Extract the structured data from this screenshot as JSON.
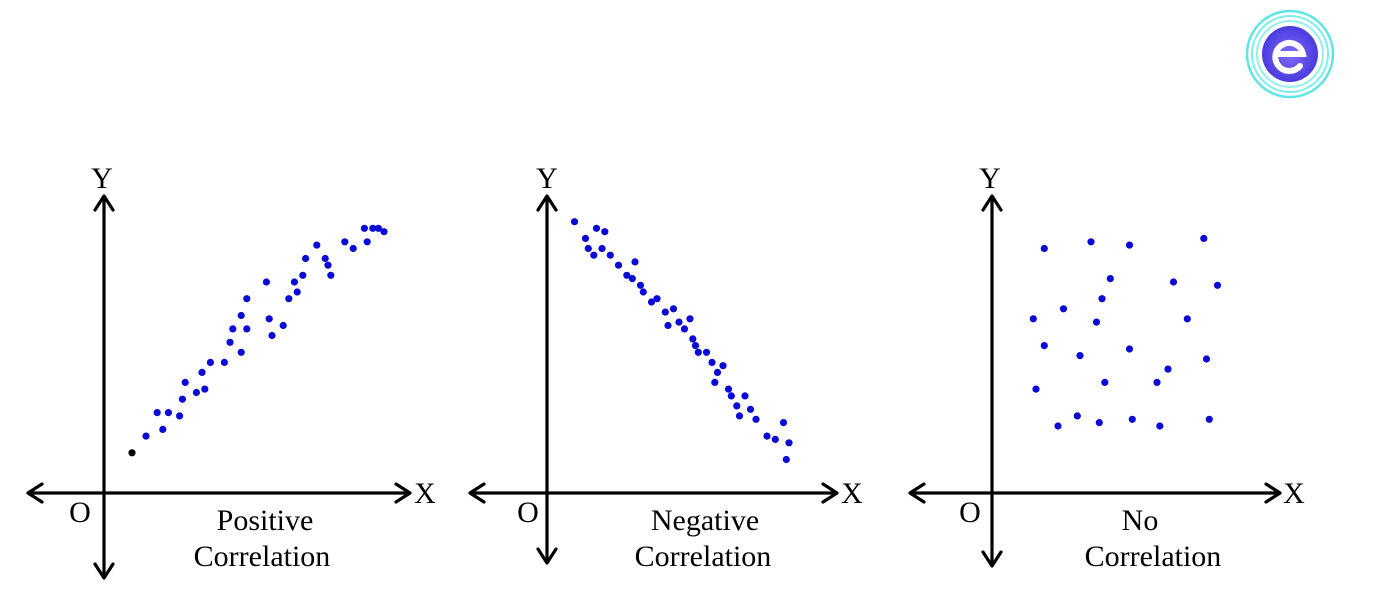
{
  "colors": {
    "point": "#0a0ad6",
    "axis": "#000000",
    "logo_ring": "#55e0e6",
    "logo_fill": "#6a4df0"
  },
  "logo": {
    "icon": "e-logo-icon"
  },
  "chart_data": [
    {
      "type": "scatter",
      "title": "",
      "caption_line1": "Positive",
      "caption_line2": "Correlation",
      "xlabel": "X",
      "ylabel": "Y",
      "origin_label": "O",
      "xlim": [
        -2.4,
        10.2
      ],
      "ylim": [
        -2.6,
        8.8
      ],
      "points": [
        [
          1.0,
          1.2
        ],
        [
          1.5,
          1.7
        ],
        [
          1.9,
          2.4
        ],
        [
          2.3,
          2.4
        ],
        [
          2.1,
          1.9
        ],
        [
          2.7,
          2.3
        ],
        [
          2.8,
          2.8
        ],
        [
          2.9,
          3.3
        ],
        [
          3.3,
          3.0
        ],
        [
          3.5,
          3.6
        ],
        [
          3.6,
          3.1
        ],
        [
          3.8,
          3.9
        ],
        [
          4.3,
          3.9
        ],
        [
          4.5,
          4.5
        ],
        [
          4.6,
          4.9
        ],
        [
          4.9,
          5.3
        ],
        [
          4.9,
          4.2
        ],
        [
          5.1,
          4.9
        ],
        [
          5.1,
          5.8
        ],
        [
          5.9,
          5.2
        ],
        [
          5.8,
          6.3
        ],
        [
          6.0,
          4.7
        ],
        [
          6.4,
          5.0
        ],
        [
          6.6,
          5.8
        ],
        [
          6.8,
          6.3
        ],
        [
          6.9,
          6.0
        ],
        [
          7.1,
          6.5
        ],
        [
          7.2,
          7.0
        ],
        [
          7.6,
          7.4
        ],
        [
          7.9,
          7.0
        ],
        [
          8.0,
          6.8
        ],
        [
          8.1,
          6.5
        ],
        [
          8.6,
          7.5
        ],
        [
          8.9,
          7.3
        ],
        [
          9.3,
          7.9
        ],
        [
          9.4,
          7.5
        ],
        [
          9.6,
          7.9
        ],
        [
          9.8,
          7.9
        ],
        [
          10.0,
          7.8
        ]
      ]
    },
    {
      "type": "scatter",
      "title": "",
      "caption_line1": "Negative",
      "caption_line2": "Correlation",
      "xlabel": "X",
      "ylabel": "Y",
      "origin_label": "O",
      "xlim": [
        -2.4,
        10.2
      ],
      "ylim": [
        -2.6,
        8.8
      ],
      "points": [
        [
          1.0,
          8.1
        ],
        [
          1.4,
          7.6
        ],
        [
          1.5,
          7.3
        ],
        [
          1.7,
          7.1
        ],
        [
          1.8,
          7.9
        ],
        [
          2.0,
          7.3
        ],
        [
          2.1,
          7.8
        ],
        [
          2.3,
          7.1
        ],
        [
          2.6,
          6.8
        ],
        [
          2.9,
          6.5
        ],
        [
          3.1,
          6.4
        ],
        [
          3.2,
          6.9
        ],
        [
          3.4,
          6.2
        ],
        [
          3.5,
          6.0
        ],
        [
          3.8,
          5.7
        ],
        [
          4.0,
          5.8
        ],
        [
          4.3,
          5.4
        ],
        [
          4.4,
          5.0
        ],
        [
          4.6,
          5.5
        ],
        [
          4.8,
          5.1
        ],
        [
          5.0,
          4.9
        ],
        [
          5.2,
          5.2
        ],
        [
          5.3,
          4.6
        ],
        [
          5.4,
          4.4
        ],
        [
          5.5,
          4.2
        ],
        [
          5.8,
          4.2
        ],
        [
          6.0,
          3.9
        ],
        [
          6.1,
          3.3
        ],
        [
          6.2,
          3.6
        ],
        [
          6.4,
          3.8
        ],
        [
          6.6,
          3.1
        ],
        [
          6.7,
          2.9
        ],
        [
          6.9,
          2.6
        ],
        [
          7.0,
          2.3
        ],
        [
          7.2,
          2.9
        ],
        [
          7.4,
          2.5
        ],
        [
          7.6,
          2.2
        ],
        [
          8.0,
          1.7
        ],
        [
          8.3,
          1.6
        ],
        [
          8.6,
          2.1
        ],
        [
          8.8,
          1.5
        ],
        [
          8.7,
          1.0
        ]
      ]
    },
    {
      "type": "scatter",
      "title": "",
      "caption_line1": "No",
      "caption_line2": "Correlation",
      "xlabel": "X",
      "ylabel": "Y",
      "origin_label": "O",
      "xlim": [
        -2.4,
        10.2
      ],
      "ylim": [
        -2.6,
        8.8
      ],
      "points": [
        [
          1.9,
          7.3
        ],
        [
          3.6,
          7.5
        ],
        [
          5.0,
          7.4
        ],
        [
          7.7,
          7.6
        ],
        [
          4.3,
          6.4
        ],
        [
          6.6,
          6.3
        ],
        [
          8.2,
          6.2
        ],
        [
          4.0,
          5.8
        ],
        [
          2.6,
          5.5
        ],
        [
          3.8,
          5.1
        ],
        [
          7.1,
          5.2
        ],
        [
          1.5,
          5.2
        ],
        [
          1.9,
          4.4
        ],
        [
          3.2,
          4.1
        ],
        [
          5.0,
          4.3
        ],
        [
          6.4,
          3.7
        ],
        [
          7.8,
          4.0
        ],
        [
          1.6,
          3.1
        ],
        [
          4.1,
          3.3
        ],
        [
          6.0,
          3.3
        ],
        [
          2.4,
          2.0
        ],
        [
          3.1,
          2.3
        ],
        [
          3.9,
          2.1
        ],
        [
          5.1,
          2.2
        ],
        [
          6.1,
          2.0
        ],
        [
          7.9,
          2.2
        ]
      ]
    }
  ]
}
